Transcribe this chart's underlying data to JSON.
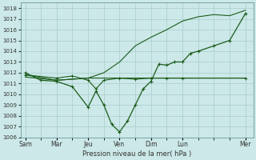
{
  "xlabel": "Pression niveau de la mer( hPa )",
  "background_color": "#cce8e8",
  "grid_color": "#aacccc",
  "line_color": "#1a5c1a",
  "ylim": [
    1006,
    1018.5
  ],
  "yticks": [
    1006,
    1007,
    1008,
    1009,
    1010,
    1011,
    1012,
    1013,
    1014,
    1015,
    1016,
    1017,
    1018
  ],
  "xtick_labels": [
    "Sam",
    "Mar",
    "Jeu",
    "Ven",
    "Dim",
    "Lun",
    "Mer"
  ],
  "xtick_positions": [
    0,
    2,
    4,
    6,
    8,
    10,
    14
  ],
  "xlim": [
    -0.3,
    14.5
  ],
  "num_grid_cols": 14,
  "series_flat_x": [
    0,
    2,
    4,
    6,
    8,
    10,
    12,
    14
  ],
  "series_flat_y": [
    1011.6,
    1011.3,
    1011.5,
    1011.5,
    1011.5,
    1011.5,
    1011.5,
    1011.5
  ],
  "series_rise_x": [
    0,
    2,
    4,
    5,
    6,
    7,
    8,
    9,
    10,
    11,
    12,
    13,
    14
  ],
  "series_rise_y": [
    1011.8,
    1011.3,
    1011.5,
    1012.0,
    1013.0,
    1014.5,
    1015.3,
    1016.0,
    1016.8,
    1017.2,
    1017.4,
    1017.3,
    1017.8
  ],
  "series_wave_x": [
    0,
    1,
    2,
    3,
    4,
    4.5,
    5,
    5.5,
    6,
    6.5,
    7,
    7.5,
    8,
    8.5,
    9,
    9.5,
    10,
    10.5,
    11,
    12,
    13,
    14
  ],
  "series_wave_y": [
    1012.0,
    1011.3,
    1011.2,
    1010.7,
    1008.8,
    1010.3,
    1009.0,
    1007.2,
    1006.5,
    1007.5,
    1009.0,
    1010.5,
    1011.2,
    1012.8,
    1012.7,
    1013.0,
    1013.0,
    1013.8,
    1014.0,
    1014.5,
    1015.0,
    1017.5
  ],
  "series_extra_x": [
    0,
    2,
    3,
    4,
    4.5,
    5,
    6,
    7,
    8,
    9,
    10,
    14
  ],
  "series_extra_y": [
    1011.8,
    1011.5,
    1011.7,
    1011.3,
    1010.5,
    1011.3,
    1011.5,
    1011.4,
    1011.5,
    1011.5,
    1011.5,
    1011.5
  ]
}
